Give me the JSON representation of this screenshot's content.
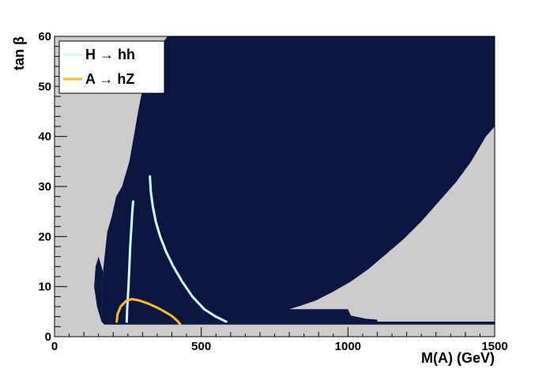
{
  "chart_data": {
    "type": "area",
    "title": "",
    "xlabel": "M(A) (GeV)",
    "ylabel": "tan β",
    "xlim": [
      0,
      1500
    ],
    "ylim": [
      0,
      60
    ],
    "xticks": [
      0,
      500,
      1000,
      1500
    ],
    "yticks": [
      0,
      10,
      20,
      30,
      40,
      50,
      60
    ],
    "grid": false,
    "legend_position": "top-left",
    "colors": {
      "excluded_region": "#cccccc",
      "allowed_region": "#0b1640",
      "H_to_hh": "#ccffff",
      "A_to_hZ": "#ffbb22"
    },
    "regions": [
      {
        "name": "allowed",
        "polygon": [
          [
            160,
            3
          ],
          [
            165,
            13
          ],
          [
            180,
            21
          ],
          [
            195,
            24
          ],
          [
            210,
            28
          ],
          [
            230,
            30
          ],
          [
            255,
            35
          ],
          [
            270,
            40
          ],
          [
            285,
            45
          ],
          [
            295,
            48
          ],
          [
            315,
            52
          ],
          [
            335,
            55
          ],
          [
            360,
            58
          ],
          [
            385,
            60
          ],
          [
            1500,
            60
          ],
          [
            1500,
            42
          ],
          [
            1470,
            40
          ],
          [
            1420,
            35
          ],
          [
            1370,
            31
          ],
          [
            1310,
            27
          ],
          [
            1250,
            23
          ],
          [
            1190,
            19.5
          ],
          [
            1130,
            16.5
          ],
          [
            1070,
            13.5
          ],
          [
            1010,
            11
          ],
          [
            950,
            9
          ],
          [
            890,
            7.2
          ],
          [
            840,
            6.2
          ],
          [
            800,
            5.5
          ],
          [
            1000,
            5.5
          ],
          [
            1010,
            4.2
          ],
          [
            1060,
            3.6
          ],
          [
            1100,
            3.4
          ],
          [
            1100,
            3
          ],
          [
            1500,
            3
          ],
          [
            1500,
            2.4
          ],
          [
            170,
            2.4
          ]
        ]
      },
      {
        "name": "allowed-lower-left-edge",
        "polygon": [
          [
            165,
            13
          ],
          [
            150,
            16
          ],
          [
            140,
            14
          ],
          [
            135,
            10
          ],
          [
            145,
            6
          ],
          [
            160,
            3
          ]
        ]
      }
    ],
    "series": [
      {
        "name": "H → hh",
        "x": [
          246,
          248,
          252,
          255,
          258,
          262,
          265,
          268
        ],
        "y": [
          3,
          6,
          10,
          14,
          18,
          22,
          25,
          27
        ]
      },
      {
        "name": "",
        "x": [
          325,
          328,
          335,
          345,
          360,
          380,
          405,
          435,
          470,
          510,
          550,
          585
        ],
        "y": [
          32,
          29,
          26,
          23,
          20,
          17,
          14,
          11,
          8,
          5.5,
          4,
          3
        ]
      },
      {
        "name": "A → hZ",
        "x": [
          212,
          215,
          225,
          245,
          265,
          290,
          320,
          350,
          375,
          398,
          418,
          428
        ],
        "y": [
          3,
          4.5,
          6,
          7.2,
          7.5,
          7.2,
          6.6,
          5.8,
          5,
          4.2,
          3.2,
          2.5
        ]
      }
    ]
  }
}
